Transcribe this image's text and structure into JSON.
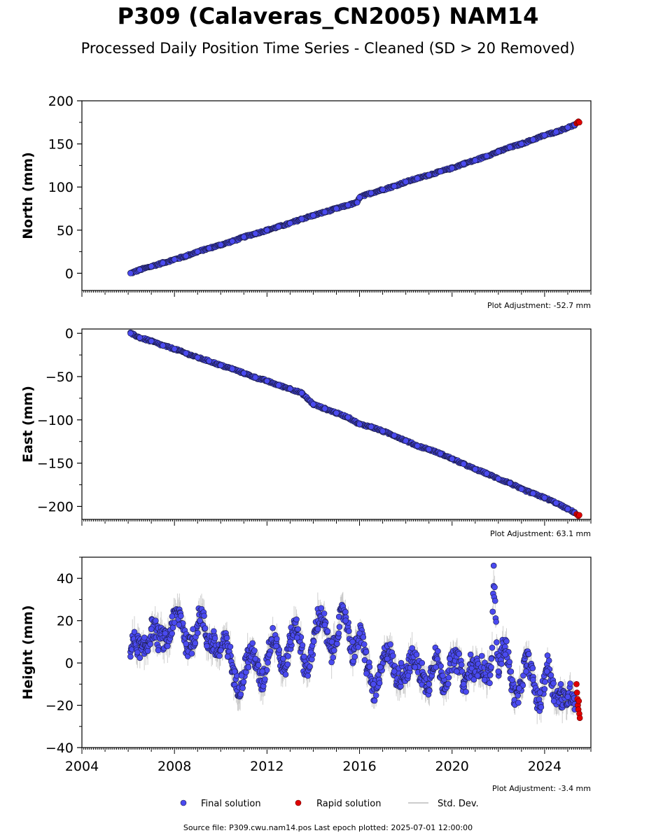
{
  "title": "P309 (Calaveras_CN2005) NAM14",
  "subtitle": "Processed Daily Position Time Series - Cleaned (SD > 20 Removed)",
  "footer": "Source file: P309.cwu.nam14.pos  Last epoch plotted: 2025-07-01 12:00:00",
  "colors": {
    "final": "#4a4af0",
    "rapid": "#e00000",
    "stddev": "#bbbbbb",
    "edge": "#1a1a40"
  },
  "legend": {
    "final": "Final solution",
    "rapid": "Rapid solution",
    "stddev": "Std. Dev."
  },
  "chart_data": [
    {
      "type": "scatter",
      "ylabel": "North (mm)",
      "adjustment": "Plot Adjustment: -52.7 mm",
      "xlim": [
        2004,
        2026
      ],
      "ylim": [
        -20,
        200
      ],
      "yticks": [
        0,
        50,
        100,
        150,
        200
      ],
      "ytick_labels": [
        "0",
        "50",
        "100",
        "150",
        "200"
      ],
      "series": [
        {
          "name": "Final solution",
          "x": [
            2006.1,
            2006.5,
            2007.0,
            2007.5,
            2008.0,
            2008.5,
            2009.0,
            2009.5,
            2010.0,
            2010.5,
            2011.0,
            2011.5,
            2012.0,
            2012.5,
            2013.0,
            2013.5,
            2014.0,
            2014.5,
            2015.0,
            2015.5,
            2015.9,
            2016.0,
            2016.5,
            2017.0,
            2017.5,
            2018.0,
            2018.5,
            2019.0,
            2019.5,
            2020.0,
            2020.5,
            2021.0,
            2021.5,
            2022.0,
            2022.5,
            2023.0,
            2023.5,
            2024.0,
            2024.5,
            2025.0,
            2025.3
          ],
          "y": [
            0,
            4,
            8,
            12,
            16,
            20,
            25,
            29,
            33,
            37,
            42,
            46,
            50,
            54,
            58,
            63,
            67,
            71,
            75,
            79,
            82,
            88,
            93,
            97,
            101,
            106,
            110,
            114,
            118,
            122,
            127,
            131,
            136,
            141,
            146,
            150,
            155,
            160,
            164,
            169,
            172
          ]
        },
        {
          "name": "Rapid solution",
          "x": [
            2025.38,
            2025.42,
            2025.46,
            2025.5
          ],
          "y": [
            174,
            175,
            176,
            175
          ]
        }
      ]
    },
    {
      "type": "scatter",
      "ylabel": "East (mm)",
      "adjustment": "Plot Adjustment: 63.1 mm",
      "xlim": [
        2004,
        2026
      ],
      "ylim": [
        -215,
        5
      ],
      "yticks": [
        0,
        -50,
        -100,
        -150,
        -200
      ],
      "ytick_labels": [
        "0",
        "−50",
        "−100",
        "−150",
        "−200"
      ],
      "series": [
        {
          "name": "Final solution",
          "x": [
            2006.1,
            2006.5,
            2007.0,
            2007.5,
            2008.0,
            2008.5,
            2009.0,
            2009.5,
            2010.0,
            2010.5,
            2011.0,
            2011.5,
            2012.0,
            2012.5,
            2013.0,
            2013.5,
            2014.0,
            2014.5,
            2015.0,
            2015.5,
            2016.0,
            2016.5,
            2017.0,
            2017.5,
            2018.0,
            2018.5,
            2019.0,
            2019.5,
            2020.0,
            2020.5,
            2021.0,
            2021.5,
            2022.0,
            2022.5,
            2023.0,
            2023.5,
            2024.0,
            2024.5,
            2025.0,
            2025.3
          ],
          "y": [
            0,
            -5,
            -9,
            -14,
            -18,
            -23,
            -28,
            -32,
            -37,
            -41,
            -46,
            -51,
            -55,
            -60,
            -64,
            -69,
            -82,
            -87,
            -92,
            -97,
            -105,
            -108,
            -113,
            -118,
            -124,
            -130,
            -134,
            -139,
            -145,
            -151,
            -157,
            -162,
            -168,
            -173,
            -180,
            -185,
            -190,
            -196,
            -203,
            -207
          ]
        },
        {
          "name": "Rapid solution",
          "x": [
            2025.38,
            2025.42,
            2025.46,
            2025.5
          ],
          "y": [
            -209,
            -210,
            -211,
            -210
          ]
        }
      ]
    },
    {
      "type": "scatter",
      "ylabel": "Height (mm)",
      "adjustment": "Plot Adjustment: -3.4 mm",
      "xlim": [
        2004,
        2026
      ],
      "ylim": [
        -40,
        50
      ],
      "yticks": [
        40,
        20,
        0,
        -20,
        -40
      ],
      "ytick_labels": [
        "40",
        "20",
        "0",
        "−20",
        "−40"
      ],
      "xticks": [
        2004,
        2008,
        2012,
        2016,
        2020,
        2024
      ],
      "xtick_labels": [
        "2004",
        "2008",
        "2012",
        "2016",
        "2020",
        "2024"
      ],
      "series": [
        {
          "name": "Final solution",
          "x": [
            2006.1,
            2006.4,
            2006.7,
            2007.0,
            2007.3,
            2007.6,
            2007.9,
            2008.2,
            2008.5,
            2008.8,
            2009.1,
            2009.4,
            2009.7,
            2010.0,
            2010.3,
            2010.6,
            2010.9,
            2011.2,
            2011.5,
            2011.8,
            2012.1,
            2012.4,
            2012.7,
            2013.0,
            2013.3,
            2013.6,
            2013.9,
            2014.2,
            2014.5,
            2014.8,
            2015.1,
            2015.4,
            2015.7,
            2016.0,
            2016.3,
            2016.6,
            2016.9,
            2017.2,
            2017.5,
            2017.8,
            2018.1,
            2018.4,
            2018.7,
            2019.0,
            2019.3,
            2019.6,
            2019.9,
            2020.2,
            2020.5,
            2020.8,
            2021.1,
            2021.4,
            2021.7,
            2021.8,
            2022.0,
            2022.3,
            2022.6,
            2022.9,
            2023.2,
            2023.5,
            2023.8,
            2024.1,
            2024.4,
            2024.7,
            2025.0,
            2025.3
          ],
          "y": [
            3,
            5,
            12,
            16,
            6,
            14,
            22,
            18,
            9,
            16,
            20,
            8,
            15,
            6,
            3,
            -4,
            -6,
            -2,
            2,
            -4,
            4,
            8,
            2,
            10,
            12,
            3,
            5,
            16,
            18,
            10,
            14,
            20,
            10,
            14,
            -5,
            -10,
            -2,
            2,
            -4,
            0,
            -6,
            -2,
            0,
            -10,
            -2,
            -6,
            2,
            -4,
            -10,
            4,
            -6,
            -8,
            2,
            46,
            -4,
            4,
            -8,
            -12,
            -4,
            -8,
            -14,
            -4,
            -18,
            -10,
            -16,
            -22
          ]
        },
        {
          "name": "Rapid solution",
          "x": [
            2025.38,
            2025.4,
            2025.42,
            2025.44,
            2025.46,
            2025.48,
            2025.5,
            2025.52
          ],
          "y": [
            -10,
            -14,
            -17,
            -20,
            -22,
            -18,
            -24,
            -26
          ]
        }
      ]
    }
  ]
}
